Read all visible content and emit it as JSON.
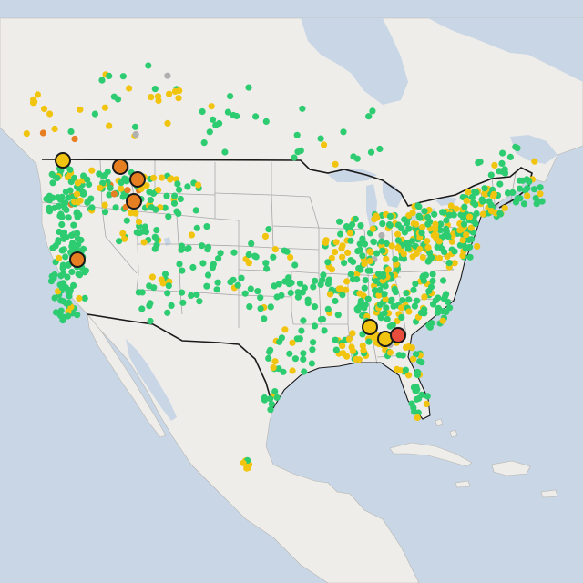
{
  "map": {
    "colors": {
      "ocean": "#c8d6e6",
      "land": "#efedea",
      "land_border": "#b9b6b0",
      "state_line": "#a8a8a8",
      "country_line": "#1a1a1a",
      "good": "#2ecc71",
      "moderate": "#f1c40f",
      "usg": "#e67e22",
      "unhealthy": "#e74c3c",
      "no_data": "#b0b0b0",
      "marker_stroke": "#1a1a1a"
    },
    "categories": [
      "good",
      "moderate",
      "usg",
      "unhealthy",
      "no_data"
    ]
  }
}
